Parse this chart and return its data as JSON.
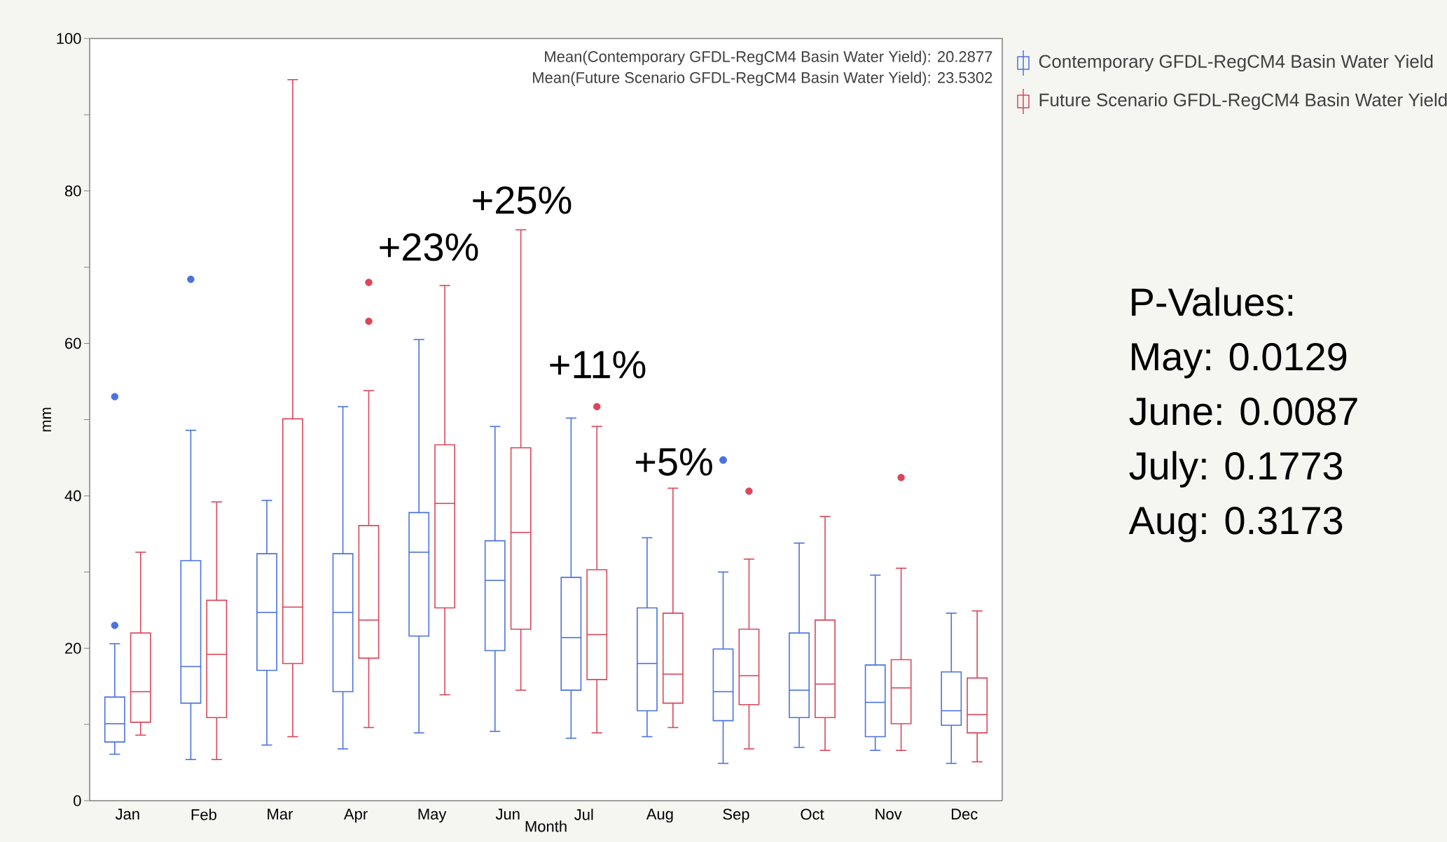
{
  "chart_data": {
    "type": "box",
    "xlabel": "Month",
    "ylabel": "mm",
    "categories": [
      "Jan",
      "Feb",
      "Mar",
      "Apr",
      "May",
      "Jun",
      "Jul",
      "Aug",
      "Sep",
      "Oct",
      "Nov",
      "Dec"
    ],
    "ylim": [
      0,
      100
    ],
    "yticks": [
      0,
      {
        "value": 10,
        "label": null
      },
      20,
      {
        "value": 30,
        "label": null
      },
      40,
      {
        "value": 50,
        "label": null
      },
      60,
      {
        "value": 70,
        "label": null
      },
      80,
      {
        "value": 90,
        "label": null
      },
      100
    ],
    "legend": "right",
    "series": [
      {
        "name": "Contemporary GFDL-RegCM4 Basin Water Yield",
        "color": "#4a72e0",
        "boxes": [
          {
            "low": 6.1,
            "q1": 7.7,
            "median": 10.1,
            "q3": 13.6,
            "high": 20.6,
            "outliers": [
              23.0,
              53.0
            ]
          },
          {
            "low": 5.4,
            "q1": 12.8,
            "median": 17.6,
            "q3": 31.5,
            "high": 48.6,
            "outliers": [
              68.4
            ]
          },
          {
            "low": 7.3,
            "q1": 17.1,
            "median": 24.7,
            "q3": 32.4,
            "high": 39.4
          },
          {
            "low": 6.8,
            "q1": 14.3,
            "median": 24.7,
            "q3": 32.4,
            "high": 51.7
          },
          {
            "low": 8.9,
            "q1": 21.6,
            "median": 32.6,
            "q3": 37.8,
            "high": 60.5
          },
          {
            "low": 9.1,
            "q1": 19.7,
            "median": 28.9,
            "q3": 34.1,
            "high": 49.1
          },
          {
            "low": 8.2,
            "q1": 14.5,
            "median": 21.4,
            "q3": 29.3,
            "high": 50.2
          },
          {
            "low": 8.4,
            "q1": 11.8,
            "median": 18.0,
            "q3": 25.3,
            "high": 34.5
          },
          {
            "low": 4.9,
            "q1": 10.5,
            "median": 14.3,
            "q3": 19.9,
            "high": 30.0,
            "outliers": [
              44.7,
              44.7
            ]
          },
          {
            "low": 7.0,
            "q1": 10.9,
            "median": 14.5,
            "q3": 22.0,
            "high": 33.8
          },
          {
            "low": 6.6,
            "q1": 8.4,
            "median": 12.9,
            "q3": 17.8,
            "high": 29.6
          },
          {
            "low": 4.9,
            "q1": 9.9,
            "median": 11.8,
            "q3": 16.9,
            "high": 24.6
          }
        ]
      },
      {
        "name": "Future Scenario GFDL-RegCM4 Basin Water Yield",
        "color": "#d9475a",
        "boxes": [
          {
            "low": 8.6,
            "q1": 10.3,
            "median": 14.3,
            "q3": 22.0,
            "high": 32.6
          },
          {
            "low": 5.4,
            "q1": 10.9,
            "median": 19.2,
            "q3": 26.3,
            "high": 39.2
          },
          {
            "low": 8.4,
            "q1": 18.0,
            "median": 25.4,
            "q3": 50.1,
            "high": 94.6
          },
          {
            "low": 9.6,
            "q1": 18.7,
            "median": 23.7,
            "q3": 36.1,
            "high": 53.8,
            "outliers": [
              62.9,
              68.0
            ]
          },
          {
            "low": 13.9,
            "q1": 25.3,
            "median": 39.0,
            "q3": 46.7,
            "high": 67.6
          },
          {
            "low": 14.5,
            "q1": 22.5,
            "median": 35.2,
            "q3": 46.3,
            "high": 74.9
          },
          {
            "low": 8.9,
            "q1": 15.9,
            "median": 21.8,
            "q3": 30.3,
            "high": 49.1,
            "outliers": [
              51.7
            ]
          },
          {
            "low": 9.6,
            "q1": 12.8,
            "median": 16.6,
            "q3": 24.6,
            "high": 41.0
          },
          {
            "low": 6.8,
            "q1": 12.6,
            "median": 16.4,
            "q3": 22.5,
            "high": 31.7,
            "outliers": [
              40.6
            ]
          },
          {
            "low": 6.6,
            "q1": 10.9,
            "median": 15.3,
            "q3": 23.7,
            "high": 37.3
          },
          {
            "low": 6.6,
            "q1": 10.1,
            "median": 14.8,
            "q3": 18.5,
            "high": 30.5,
            "outliers": [
              42.4
            ]
          },
          {
            "low": 5.1,
            "q1": 8.9,
            "median": 11.3,
            "q3": 16.1,
            "high": 24.9
          }
        ]
      }
    ],
    "annotations": [
      "Mean(Contemporary GFDL-RegCM4 Basin Water Yield): 20.2877",
      "Mean(Future Scenario GFDL-RegCM4 Basin Water Yield): 23.5302",
      "+23%",
      "+25%",
      "+11%",
      "+5%",
      "P-Values:",
      "May: 0.0129",
      "June: 0.0087",
      "July: 0.1773",
      "Aug: 0.3173"
    ]
  }
}
